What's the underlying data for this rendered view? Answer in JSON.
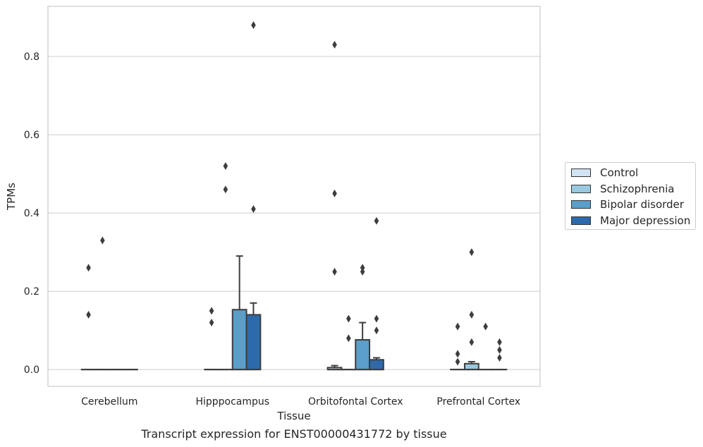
{
  "caption": "Transcript expression for ENST00000431772 by tissue",
  "chart_data": {
    "type": "box",
    "title": "",
    "xlabel": "Tissue",
    "ylabel": "TPMs",
    "ylim": [
      -0.043,
      0.928
    ],
    "yticks": [
      0.0,
      0.2,
      0.4,
      0.6,
      0.8
    ],
    "ytick_labels": [
      "0.0",
      "0.2",
      "0.4",
      "0.6",
      "0.8"
    ],
    "grid": "horizontal",
    "legend_position": "right",
    "categories": [
      "Cerebellum",
      "Hipppocampus",
      "Orbitofontal Cortex",
      "Prefrontal Cortex"
    ],
    "series": [
      {
        "name": "Control",
        "color": "#d2e3f3",
        "boxes": [
          {
            "q1": 0.0,
            "median": 0.0,
            "q3": 0.0,
            "whisker_low": 0.0,
            "whisker_high": 0.0,
            "outliers": [
              0.26,
              0.14
            ]
          },
          {
            "q1": 0.0,
            "median": 0.0,
            "q3": 0.0,
            "whisker_low": 0.0,
            "whisker_high": 0.0,
            "outliers": [
              0.15,
              0.12
            ]
          },
          {
            "q1": 0.0,
            "median": 0.0,
            "q3": 0.005,
            "whisker_low": 0.0,
            "whisker_high": 0.01,
            "outliers": [
              0.45,
              0.25
            ]
          },
          {
            "q1": 0.0,
            "median": 0.0,
            "q3": 0.0,
            "whisker_low": 0.0,
            "whisker_high": 0.0,
            "outliers": [
              0.11,
              0.04,
              0.02
            ]
          }
        ]
      },
      {
        "name": "Schizophrenia",
        "color": "#9ac8e0",
        "boxes": [
          {
            "q1": 0.0,
            "median": 0.0,
            "q3": 0.0,
            "whisker_low": 0.0,
            "whisker_high": 0.0,
            "outliers": [
              0.33
            ]
          },
          {
            "q1": 0.0,
            "median": 0.0,
            "q3": 0.0,
            "whisker_low": 0.0,
            "whisker_high": 0.0,
            "outliers": [
              0.52,
              0.46
            ]
          },
          {
            "q1": 0.0,
            "median": 0.0,
            "q3": 0.0,
            "whisker_low": 0.0,
            "whisker_high": 0.0,
            "outliers": [
              0.13,
              0.08
            ]
          },
          {
            "q1": 0.0,
            "median": 0.0,
            "q3": 0.015,
            "whisker_low": 0.0,
            "whisker_high": 0.02,
            "outliers": [
              0.3,
              0.14,
              0.07
            ]
          }
        ]
      },
      {
        "name": "Bipolar disorder",
        "color": "#5a9ec9",
        "boxes": [
          {
            "q1": 0.0,
            "median": 0.0,
            "q3": 0.0,
            "whisker_low": 0.0,
            "whisker_high": 0.0,
            "outliers": []
          },
          {
            "q1": 0.0,
            "median": 0.0,
            "q3": 0.153,
            "whisker_low": 0.0,
            "whisker_high": 0.29,
            "outliers": []
          },
          {
            "q1": 0.0,
            "median": 0.0,
            "q3": 0.076,
            "whisker_low": 0.0,
            "whisker_high": 0.12,
            "outliers": [
              0.26,
              0.25
            ]
          },
          {
            "q1": 0.0,
            "median": 0.0,
            "q3": 0.0,
            "whisker_low": 0.0,
            "whisker_high": 0.0,
            "outliers": [
              0.11
            ]
          }
        ]
      },
      {
        "name": "Major depression",
        "color": "#2c6aab",
        "boxes": [
          {
            "q1": 0.0,
            "median": 0.0,
            "q3": 0.0,
            "whisker_low": 0.0,
            "whisker_high": 0.0,
            "outliers": []
          },
          {
            "q1": 0.0,
            "median": 0.0,
            "q3": 0.14,
            "whisker_low": 0.0,
            "whisker_high": 0.17,
            "outliers": [
              0.88,
              0.41
            ]
          },
          {
            "q1": 0.0,
            "median": 0.0,
            "q3": 0.025,
            "whisker_low": 0.0,
            "whisker_high": 0.03,
            "outliers": [
              0.38,
              0.13,
              0.1
            ]
          },
          {
            "q1": 0.0,
            "median": 0.0,
            "q3": 0.0,
            "whisker_low": 0.0,
            "whisker_high": 0.0,
            "outliers": [
              0.07,
              0.05,
              0.03
            ]
          }
        ]
      }
    ],
    "extra_outliers": [
      {
        "category_index": 2,
        "series_index": 0,
        "value": 0.83
      }
    ]
  }
}
